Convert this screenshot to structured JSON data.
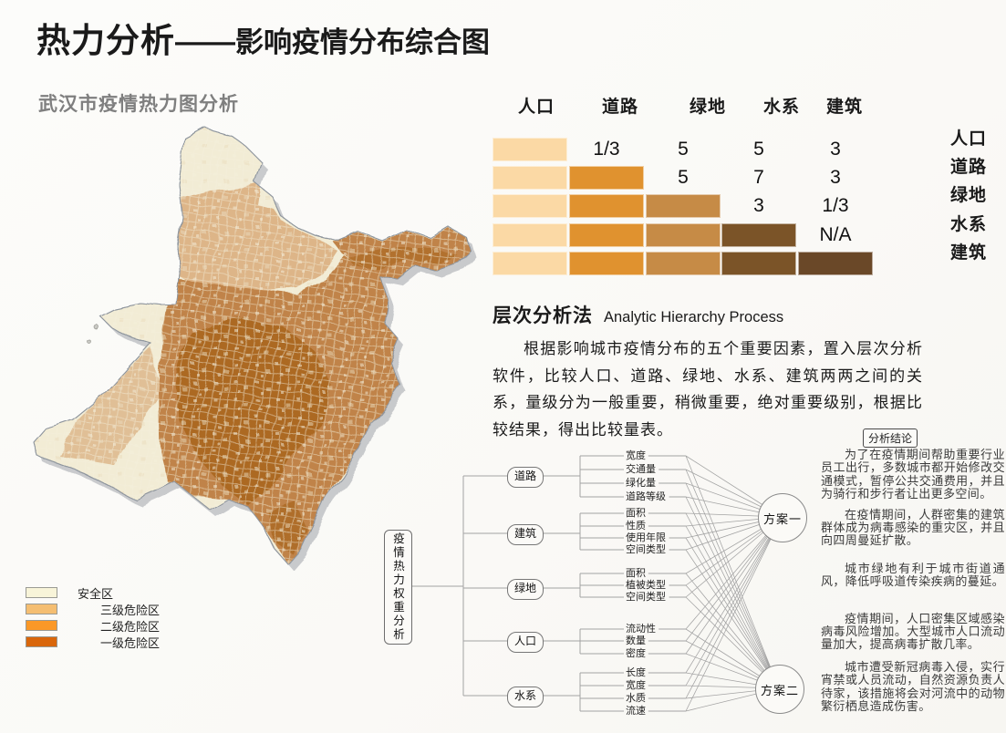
{
  "title": {
    "main": "热力分析",
    "dash": "——",
    "sub": "影响疫情分布综合图"
  },
  "map_section": {
    "heading": "武汉市疫情热力图分析",
    "legend": [
      {
        "label": "安全区",
        "color": "#F8F4D9"
      },
      {
        "label": "三级危险区",
        "color": "#F5BE72"
      },
      {
        "label": "二级危险区",
        "color": "#FB9827"
      },
      {
        "label": "一级危险区",
        "color": "#D9660B"
      }
    ]
  },
  "matrix": {
    "columns": [
      "人口",
      "道路",
      "绿地",
      "水系",
      "建筑"
    ],
    "column_colors": [
      "#FBD9A5",
      "#E0922F",
      "#C68B46",
      "#7B5428",
      "#6A4828"
    ],
    "rows": [
      {
        "label": "人口",
        "filled": 1,
        "values": [
          "",
          "1/3",
          "5",
          "5",
          "3"
        ]
      },
      {
        "label": "道路",
        "filled": 2,
        "values": [
          "",
          "",
          "5",
          "7",
          "3"
        ]
      },
      {
        "label": "绿地",
        "filled": 3,
        "values": [
          "",
          "",
          "",
          "3",
          "1/3"
        ]
      },
      {
        "label": "水系",
        "filled": 4,
        "values": [
          "",
          "",
          "",
          "",
          "N/A"
        ]
      },
      {
        "label": "建筑",
        "filled": 5,
        "values": [
          "",
          "",
          "",
          "",
          ""
        ]
      }
    ]
  },
  "ahp": {
    "heading_zh": "层次分析法",
    "heading_en": "Analytic Hierarchy Process",
    "paragraph": "根据影响城市疫情分布的五个重要因素，置入层次分析软件，比较人口、道路、绿地、水系、建筑两两之间的关系，量级分为一般重要，稍微重要，绝对重要级别，根据比较结果，得出比较量表。"
  },
  "hierarchy": {
    "root": "疫情热力权重分析",
    "groups": [
      {
        "label": "道路",
        "leaves": [
          "宽度",
          "交通量",
          "绿化量",
          "道路等级"
        ]
      },
      {
        "label": "建筑",
        "leaves": [
          "面积",
          "性质",
          "使用年限",
          "空间类型"
        ]
      },
      {
        "label": "绿地",
        "leaves": [
          "面积",
          "植被类型",
          "空间类型"
        ]
      },
      {
        "label": "人口",
        "leaves": [
          "流动性",
          "数量",
          "密度"
        ]
      },
      {
        "label": "水系",
        "leaves": [
          "长度",
          "宽度",
          "水质",
          "流速"
        ]
      }
    ],
    "targets": [
      "方案一",
      "方案二"
    ]
  },
  "conclusions": {
    "heading": "分析结论",
    "paragraphs": [
      "为了在疫情期间帮助重要行业员工出行，多数城市都开始修改交通模式，暂停公共交通费用，并且为骑行和步行者让出更多空间。",
      "在疫情期间，人群密集的建筑群体成为病毒感染的重灾区，并且向四周曼延扩散。",
      "城市绿地有利于城市街道通风，降低呼吸道传染疾病的蔓延。",
      "疫情期间，人口密集区域感染病毒风险增加。大型城市人口流动量加大，提高病毒扩散几率。",
      "城市遭受新冠病毒入侵，实行宵禁或人员流动，自然资源负责人待家，该措施将会对河流中的动物繁衍栖息造成伤害。"
    ]
  }
}
